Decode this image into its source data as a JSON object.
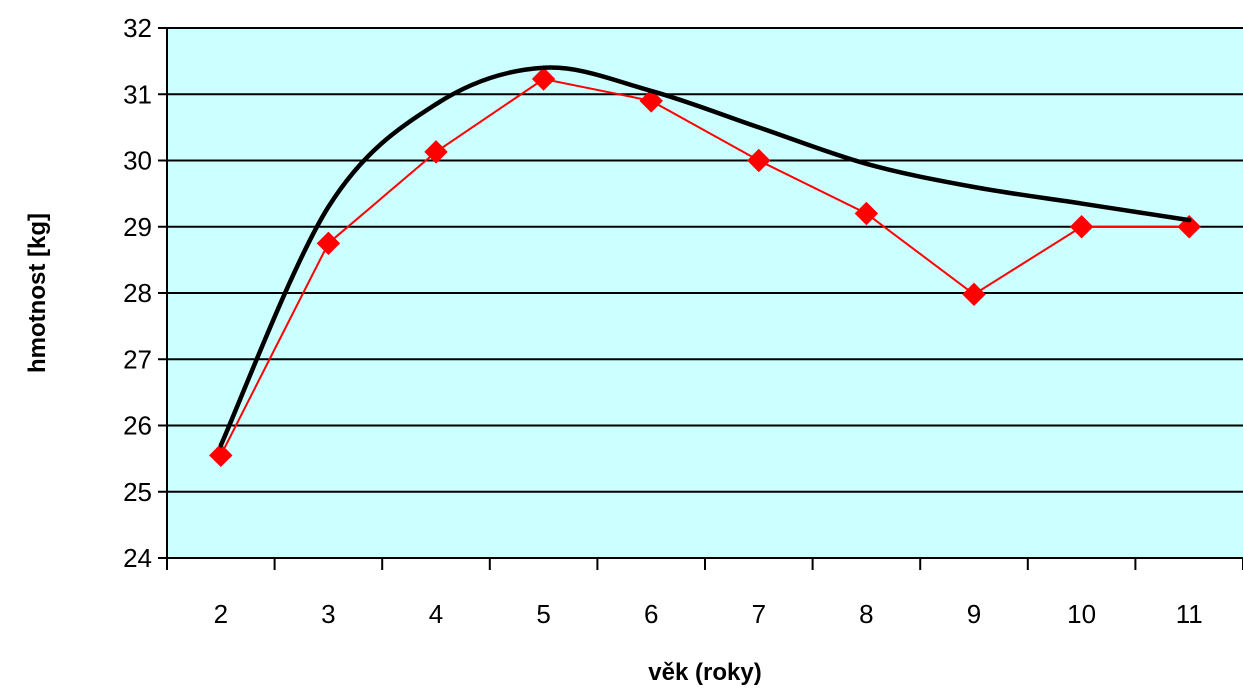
{
  "chart_data": {
    "type": "line",
    "title": "",
    "xlabel": "věk (roky)",
    "ylabel": "hmotnost [kg]",
    "categories": [
      "2",
      "3",
      "4",
      "5",
      "6",
      "7",
      "8",
      "9",
      "10",
      "11"
    ],
    "ylim": [
      24,
      32
    ],
    "yticks": [
      "24",
      "25",
      "26",
      "27",
      "28",
      "29",
      "30",
      "31",
      "32"
    ],
    "grid": "horizontal",
    "legend": "none",
    "plot_background": "#CCFFFF",
    "series": [
      {
        "type": "line-markers",
        "color": "#FF0000",
        "marker": "diamond",
        "values": [
          25.55,
          28.75,
          30.13,
          31.23,
          30.9,
          30.0,
          29.2,
          27.98,
          29.0,
          29.0
        ]
      },
      {
        "type": "smooth-trend",
        "color": "#000000",
        "values": [
          25.7,
          29.3,
          30.85,
          31.4,
          31.05,
          30.5,
          29.95,
          29.6,
          29.35,
          29.1
        ]
      }
    ]
  }
}
